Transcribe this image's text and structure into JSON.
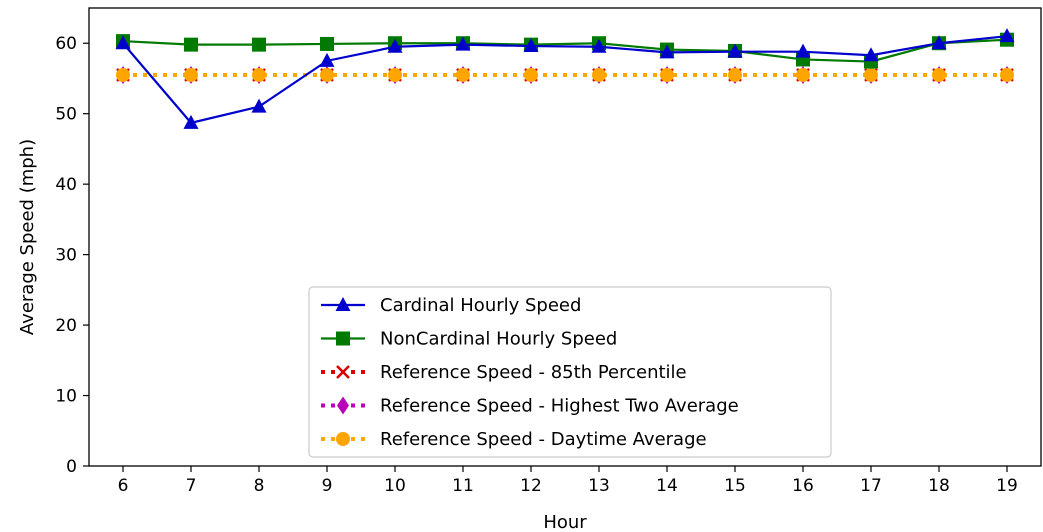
{
  "chart_data": {
    "type": "line",
    "title": "",
    "xlabel": "Hour",
    "ylabel": "Average Speed (mph)",
    "x": [
      6,
      7,
      8,
      9,
      10,
      11,
      12,
      13,
      14,
      15,
      16,
      17,
      18,
      19
    ],
    "xlim": [
      5.5,
      19.5
    ],
    "ylim": [
      0,
      65
    ],
    "yticks": [
      0,
      10,
      20,
      30,
      40,
      50,
      60
    ],
    "grid": false,
    "legend_position": "lower-center",
    "series": [
      {
        "name": "Cardinal Hourly Speed",
        "color": "#0000cc",
        "marker": "triangle",
        "linestyle": "solid",
        "values": [
          60.0,
          48.7,
          51.0,
          57.5,
          59.5,
          59.8,
          59.6,
          59.5,
          58.7,
          58.8,
          58.8,
          58.3,
          60.0,
          61.0
        ]
      },
      {
        "name": "NonCardinal Hourly Speed",
        "color": "#007a00",
        "marker": "square",
        "linestyle": "solid",
        "values": [
          60.3,
          59.8,
          59.8,
          59.9,
          60.0,
          60.0,
          59.8,
          60.0,
          59.1,
          58.9,
          57.7,
          57.4,
          60.0,
          60.5
        ]
      },
      {
        "name": "Reference Speed - 85th Percentile",
        "color": "#dd0000",
        "marker": "x",
        "linestyle": "dotted",
        "values": [
          55.5,
          55.5,
          55.5,
          55.5,
          55.5,
          55.5,
          55.5,
          55.5,
          55.5,
          55.5,
          55.5,
          55.5,
          55.5,
          55.5
        ]
      },
      {
        "name": "Reference Speed - Highest Two Average",
        "color": "#bb00bb",
        "marker": "diamond",
        "linestyle": "dotted",
        "values": [
          55.5,
          55.5,
          55.5,
          55.5,
          55.5,
          55.5,
          55.5,
          55.5,
          55.5,
          55.5,
          55.5,
          55.5,
          55.5,
          55.5
        ]
      },
      {
        "name": "Reference Speed - Daytime Average",
        "color": "#ffa500",
        "marker": "circle",
        "linestyle": "dotted",
        "values": [
          55.5,
          55.5,
          55.5,
          55.5,
          55.5,
          55.5,
          55.5,
          55.5,
          55.5,
          55.5,
          55.5,
          55.5,
          55.5,
          55.5
        ]
      }
    ]
  }
}
